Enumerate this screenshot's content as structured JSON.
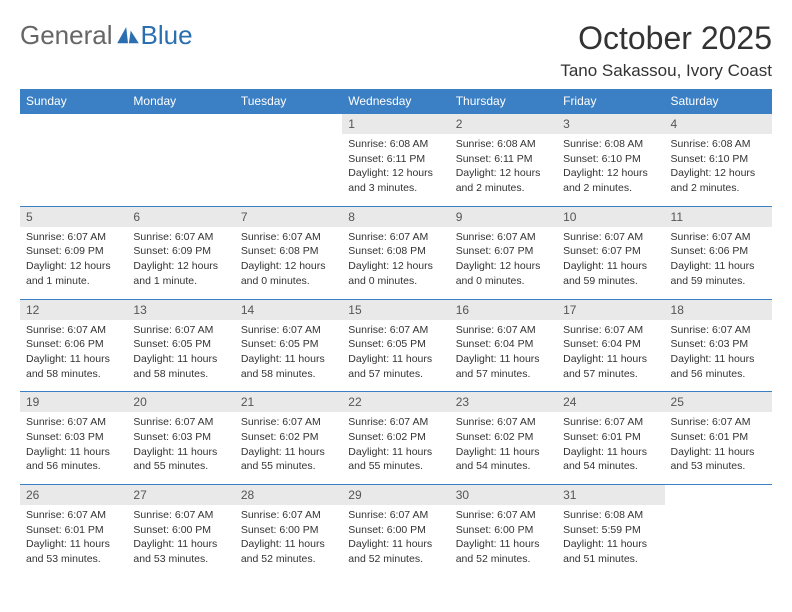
{
  "logo": {
    "text1": "General",
    "text2": "Blue"
  },
  "title": "October 2025",
  "location": "Tano Sakassou, Ivory Coast",
  "colors": {
    "header_bg": "#3b7fc4",
    "header_text": "#ffffff",
    "daynum_bg": "#e9e9e9",
    "logo_gray": "#666666",
    "logo_blue": "#2b6fb0"
  },
  "day_names": [
    "Sunday",
    "Monday",
    "Tuesday",
    "Wednesday",
    "Thursday",
    "Friday",
    "Saturday"
  ],
  "weeks": [
    [
      null,
      null,
      null,
      {
        "n": "1",
        "sr": "6:08 AM",
        "ss": "6:11 PM",
        "dl": "12 hours and 3 minutes."
      },
      {
        "n": "2",
        "sr": "6:08 AM",
        "ss": "6:11 PM",
        "dl": "12 hours and 2 minutes."
      },
      {
        "n": "3",
        "sr": "6:08 AM",
        "ss": "6:10 PM",
        "dl": "12 hours and 2 minutes."
      },
      {
        "n": "4",
        "sr": "6:08 AM",
        "ss": "6:10 PM",
        "dl": "12 hours and 2 minutes."
      }
    ],
    [
      {
        "n": "5",
        "sr": "6:07 AM",
        "ss": "6:09 PM",
        "dl": "12 hours and 1 minute."
      },
      {
        "n": "6",
        "sr": "6:07 AM",
        "ss": "6:09 PM",
        "dl": "12 hours and 1 minute."
      },
      {
        "n": "7",
        "sr": "6:07 AM",
        "ss": "6:08 PM",
        "dl": "12 hours and 0 minutes."
      },
      {
        "n": "8",
        "sr": "6:07 AM",
        "ss": "6:08 PM",
        "dl": "12 hours and 0 minutes."
      },
      {
        "n": "9",
        "sr": "6:07 AM",
        "ss": "6:07 PM",
        "dl": "12 hours and 0 minutes."
      },
      {
        "n": "10",
        "sr": "6:07 AM",
        "ss": "6:07 PM",
        "dl": "11 hours and 59 minutes."
      },
      {
        "n": "11",
        "sr": "6:07 AM",
        "ss": "6:06 PM",
        "dl": "11 hours and 59 minutes."
      }
    ],
    [
      {
        "n": "12",
        "sr": "6:07 AM",
        "ss": "6:06 PM",
        "dl": "11 hours and 58 minutes."
      },
      {
        "n": "13",
        "sr": "6:07 AM",
        "ss": "6:05 PM",
        "dl": "11 hours and 58 minutes."
      },
      {
        "n": "14",
        "sr": "6:07 AM",
        "ss": "6:05 PM",
        "dl": "11 hours and 58 minutes."
      },
      {
        "n": "15",
        "sr": "6:07 AM",
        "ss": "6:05 PM",
        "dl": "11 hours and 57 minutes."
      },
      {
        "n": "16",
        "sr": "6:07 AM",
        "ss": "6:04 PM",
        "dl": "11 hours and 57 minutes."
      },
      {
        "n": "17",
        "sr": "6:07 AM",
        "ss": "6:04 PM",
        "dl": "11 hours and 57 minutes."
      },
      {
        "n": "18",
        "sr": "6:07 AM",
        "ss": "6:03 PM",
        "dl": "11 hours and 56 minutes."
      }
    ],
    [
      {
        "n": "19",
        "sr": "6:07 AM",
        "ss": "6:03 PM",
        "dl": "11 hours and 56 minutes."
      },
      {
        "n": "20",
        "sr": "6:07 AM",
        "ss": "6:03 PM",
        "dl": "11 hours and 55 minutes."
      },
      {
        "n": "21",
        "sr": "6:07 AM",
        "ss": "6:02 PM",
        "dl": "11 hours and 55 minutes."
      },
      {
        "n": "22",
        "sr": "6:07 AM",
        "ss": "6:02 PM",
        "dl": "11 hours and 55 minutes."
      },
      {
        "n": "23",
        "sr": "6:07 AM",
        "ss": "6:02 PM",
        "dl": "11 hours and 54 minutes."
      },
      {
        "n": "24",
        "sr": "6:07 AM",
        "ss": "6:01 PM",
        "dl": "11 hours and 54 minutes."
      },
      {
        "n": "25",
        "sr": "6:07 AM",
        "ss": "6:01 PM",
        "dl": "11 hours and 53 minutes."
      }
    ],
    [
      {
        "n": "26",
        "sr": "6:07 AM",
        "ss": "6:01 PM",
        "dl": "11 hours and 53 minutes."
      },
      {
        "n": "27",
        "sr": "6:07 AM",
        "ss": "6:00 PM",
        "dl": "11 hours and 53 minutes."
      },
      {
        "n": "28",
        "sr": "6:07 AM",
        "ss": "6:00 PM",
        "dl": "11 hours and 52 minutes."
      },
      {
        "n": "29",
        "sr": "6:07 AM",
        "ss": "6:00 PM",
        "dl": "11 hours and 52 minutes."
      },
      {
        "n": "30",
        "sr": "6:07 AM",
        "ss": "6:00 PM",
        "dl": "11 hours and 52 minutes."
      },
      {
        "n": "31",
        "sr": "6:08 AM",
        "ss": "5:59 PM",
        "dl": "11 hours and 51 minutes."
      },
      null
    ]
  ],
  "labels": {
    "sunrise": "Sunrise:",
    "sunset": "Sunset:",
    "daylight": "Daylight:"
  }
}
